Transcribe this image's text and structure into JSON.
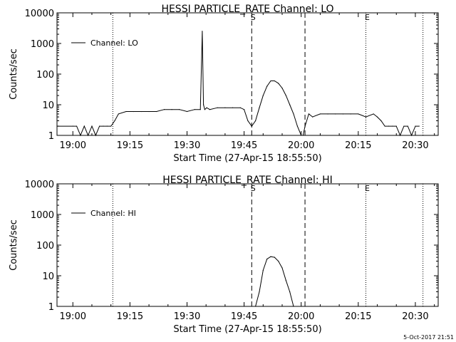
{
  "footer_date": "5-Oct-2017 21:51",
  "chart_data": [
    {
      "type": "line",
      "title": "HESSI PARTICLE_RATE Channel: LO",
      "xlabel": "Start Time (27-Apr-15 18:55:50)",
      "ylabel": "Counts/sec",
      "y_scale": "log",
      "ylim": [
        1,
        10000
      ],
      "xlim": [
        "18:55:50",
        "20:36:00"
      ],
      "y_ticks": [
        "1",
        "10",
        "100",
        "1000",
        "10000"
      ],
      "x_ticks": [
        "19:00",
        "19:15",
        "19:30",
        "19:45",
        "20:00",
        "20:15",
        "20:30"
      ],
      "legend": "Channel: LO",
      "legend_position": "top-left",
      "markers": [
        {
          "label": "S",
          "time": "19:47:00",
          "style": "dashed"
        },
        {
          "label": "E",
          "time": "20:17:00",
          "style": "dotted"
        }
      ],
      "reference_lines": [
        {
          "time": "19:10:30",
          "style": "dotted"
        },
        {
          "time": "20:01:00",
          "style": "dashed"
        },
        {
          "time": "20:32:00",
          "style": "dotted"
        }
      ],
      "series": [
        {
          "name": "Channel: LO",
          "x": [
            "18:55:50",
            "19:00:00",
            "19:01:00",
            "19:02:00",
            "19:03:00",
            "19:04:00",
            "19:05:00",
            "19:06:00",
            "19:07:00",
            "19:08:00",
            "19:09:00",
            "19:10:00",
            "19:11:00",
            "19:12:00",
            "19:14:00",
            "19:16:00",
            "19:18:00",
            "19:20:00",
            "19:22:00",
            "19:24:00",
            "19:26:00",
            "19:28:00",
            "19:30:00",
            "19:32:00",
            "19:33:30",
            "19:34:00",
            "19:34:20",
            "19:34:40",
            "19:35:10",
            "19:36:00",
            "19:38:00",
            "19:40:00",
            "19:42:00",
            "19:44:00",
            "19:45:00",
            "19:46:00",
            "19:47:00",
            "19:48:00",
            "19:49:00",
            "19:50:00",
            "19:51:00",
            "19:52:00",
            "19:53:00",
            "19:54:00",
            "19:55:00",
            "19:56:00",
            "19:57:00",
            "19:58:00",
            "19:59:00",
            "20:00:00",
            "20:00:30",
            "20:01:00",
            "20:02:00",
            "20:03:00",
            "20:05:00",
            "20:07:00",
            "20:09:00",
            "20:11:00",
            "20:13:00",
            "20:15:00",
            "20:17:00",
            "20:19:00",
            "20:20:00",
            "20:21:00",
            "20:22:00",
            "20:23:00",
            "20:24:00",
            "20:25:00",
            "20:26:00",
            "20:27:00",
            "20:28:00",
            "20:29:00",
            "20:30:00",
            "20:31:00"
          ],
          "values": [
            2,
            2,
            2,
            1,
            2,
            1,
            2,
            1,
            2,
            2,
            2,
            2,
            3,
            5,
            6,
            6,
            6,
            6,
            6,
            7,
            7,
            7,
            6,
            7,
            7,
            2500,
            10,
            7,
            8,
            7,
            8,
            8,
            8,
            8,
            7,
            3,
            2,
            3,
            8,
            20,
            40,
            60,
            60,
            50,
            35,
            20,
            10,
            5,
            2,
            1,
            1,
            2,
            5,
            4,
            5,
            5,
            5,
            5,
            5,
            5,
            4,
            5,
            4,
            3,
            2,
            2,
            2,
            2,
            1,
            2,
            2,
            1,
            2,
            2
          ]
        }
      ]
    },
    {
      "type": "line",
      "title": "HESSI PARTICLE_RATE Channel: HI",
      "xlabel": "Start Time (27-Apr-15 18:55:50)",
      "ylabel": "Counts/sec",
      "y_scale": "log",
      "ylim": [
        1,
        10000
      ],
      "xlim": [
        "18:55:50",
        "20:36:00"
      ],
      "y_ticks": [
        "1",
        "10",
        "100",
        "1000",
        "10000"
      ],
      "x_ticks": [
        "19:00",
        "19:15",
        "19:30",
        "19:45",
        "20:00",
        "20:15",
        "20:30"
      ],
      "legend": "Channel: HI",
      "legend_position": "top-left",
      "markers": [
        {
          "label": "S",
          "time": "19:47:00",
          "style": "dashed"
        },
        {
          "label": "E",
          "time": "20:17:00",
          "style": "dotted"
        }
      ],
      "reference_lines": [
        {
          "time": "19:10:30",
          "style": "dotted"
        },
        {
          "time": "20:01:00",
          "style": "dashed"
        },
        {
          "time": "20:32:00",
          "style": "dotted"
        }
      ],
      "series": [
        {
          "name": "Channel: HI",
          "x": [
            "19:48:00",
            "19:49:00",
            "19:50:00",
            "19:51:00",
            "19:52:00",
            "19:53:00",
            "19:54:00",
            "19:55:00",
            "19:56:00",
            "19:57:00",
            "19:58:00"
          ],
          "values": [
            1,
            3,
            15,
            35,
            42,
            40,
            30,
            18,
            7,
            3,
            1
          ]
        }
      ]
    }
  ]
}
